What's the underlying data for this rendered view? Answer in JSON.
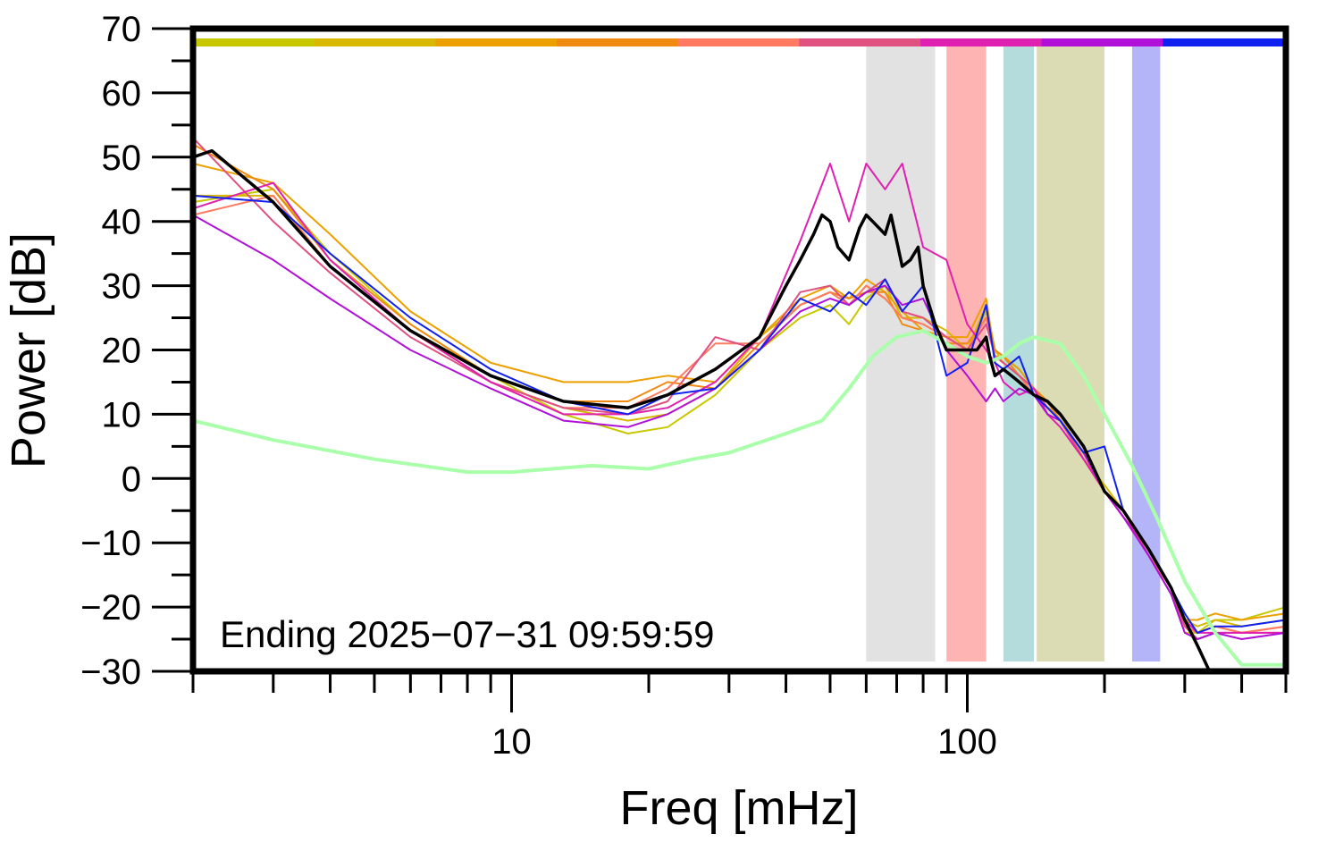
{
  "chart_data": {
    "type": "line",
    "xlabel": "Freq [mHz]",
    "ylabel": "Power [dB]",
    "xscale": "log",
    "xlim": [
      2,
      500
    ],
    "ylim": [
      -30,
      70
    ],
    "x_ticks": [
      10,
      100
    ],
    "y_ticks": [
      70,
      60,
      50,
      40,
      30,
      20,
      10,
      0,
      -10,
      -20,
      -30
    ],
    "y_tick_labels": [
      "70",
      "60",
      "50",
      "40",
      "30",
      "20",
      "10",
      "0",
      "−10",
      "−20",
      "−30"
    ],
    "annotation": "Ending 2025−07−31 09:59:59",
    "grid": false,
    "legend": "none",
    "color_bar": [
      "#c8c800",
      "#d8b800",
      "#eca000",
      "#f08a10",
      "#ff7a60",
      "#e05080",
      "#e020b0",
      "#b010d8",
      "#1020f0"
    ],
    "bands": [
      {
        "from": 60,
        "to": 85,
        "color": "#e2e2e2"
      },
      {
        "from": 90,
        "to": 110,
        "color": "#ffb4b4"
      },
      {
        "from": 120,
        "to": 140,
        "color": "#b4dcdc"
      },
      {
        "from": 142,
        "to": 200,
        "color": "#dcdcb4"
      },
      {
        "from": 230,
        "to": 265,
        "color": "#b4b4f8"
      }
    ],
    "series": [
      {
        "color": "#c8c800",
        "width": 2,
        "x": [
          2,
          3,
          4,
          6,
          9,
          13,
          18,
          22,
          28,
          35,
          43,
          50,
          55,
          60,
          66,
          72,
          80,
          90,
          100,
          110,
          115,
          120,
          130,
          140,
          150,
          160,
          180,
          200,
          220,
          250,
          280,
          300,
          320,
          350,
          400,
          500
        ],
        "y": [
          43,
          45,
          35,
          24,
          16,
          10,
          7,
          8,
          13,
          20,
          25,
          27,
          24,
          28,
          30,
          25,
          24,
          22,
          20,
          26,
          20,
          19,
          17,
          14,
          12,
          9,
          4,
          -2,
          -6,
          -12,
          -18,
          -24,
          -24,
          -22,
          -22,
          -20
        ]
      },
      {
        "color": "#d8b800",
        "width": 2,
        "x": [
          2,
          3,
          4,
          6,
          9,
          13,
          18,
          22,
          28,
          35,
          43,
          50,
          55,
          60,
          66,
          72,
          80,
          90,
          100,
          110,
          115,
          120,
          130,
          140,
          150,
          160,
          180,
          200,
          220,
          250,
          280,
          300,
          320,
          350,
          400,
          500
        ],
        "y": [
          44,
          44,
          33,
          23,
          15,
          11,
          9,
          10,
          14,
          22,
          27,
          29,
          27,
          30,
          28,
          25,
          25,
          23,
          20,
          27,
          20,
          18,
          16,
          13,
          11,
          10,
          3,
          -1,
          -5,
          -11,
          -17,
          -22,
          -23,
          -22,
          -23,
          -22
        ]
      },
      {
        "color": "#eca000",
        "width": 2,
        "x": [
          2,
          3,
          4,
          6,
          9,
          13,
          18,
          22,
          28,
          35,
          43,
          50,
          55,
          60,
          66,
          72,
          80,
          90,
          100,
          110,
          115,
          120,
          130,
          140,
          150,
          160,
          180,
          200,
          220,
          250,
          280,
          300,
          320,
          350,
          400,
          500
        ],
        "y": [
          49,
          46,
          38,
          26,
          18,
          15,
          15,
          16,
          15,
          22,
          28,
          30,
          28,
          31,
          29,
          26,
          23,
          22,
          22,
          28,
          19,
          19,
          17,
          14,
          11,
          9,
          4,
          -2,
          -6,
          -11,
          -17,
          -22,
          -22,
          -21,
          -22,
          -21
        ]
      },
      {
        "color": "#f08a10",
        "width": 2,
        "x": [
          2,
          3,
          4,
          6,
          9,
          13,
          18,
          22,
          28,
          35,
          43,
          50,
          55,
          60,
          66,
          72,
          80,
          90,
          100,
          110,
          115,
          120,
          130,
          140,
          150,
          160,
          180,
          200,
          220,
          250,
          280,
          300,
          320,
          350,
          400,
          500
        ],
        "y": [
          52,
          45,
          34,
          24,
          16,
          12,
          12,
          15,
          14,
          21,
          27,
          29,
          28,
          29,
          29,
          24,
          23,
          21,
          21,
          25,
          20,
          19,
          16,
          14,
          12,
          9,
          3,
          -2,
          -5,
          -12,
          -17,
          -23,
          -24,
          -23,
          -24,
          -23
        ]
      },
      {
        "color": "#ff7a60",
        "width": 2,
        "x": [
          2,
          3,
          4,
          6,
          9,
          13,
          18,
          22,
          28,
          35,
          43,
          50,
          55,
          60,
          66,
          72,
          80,
          90,
          100,
          110,
          115,
          120,
          130,
          140,
          150,
          160,
          180,
          200,
          220,
          250,
          280,
          300,
          320,
          350,
          400,
          500
        ],
        "y": [
          41,
          44,
          33,
          23,
          15,
          11,
          11,
          14,
          21,
          21,
          27,
          29,
          27,
          30,
          28,
          25,
          24,
          22,
          20,
          25,
          19,
          18,
          16,
          13,
          11,
          9,
          4,
          -2,
          -6,
          -12,
          -17,
          -23,
          -24,
          -23,
          -24,
          -23
        ]
      },
      {
        "color": "#e05080",
        "width": 2,
        "x": [
          2,
          3,
          4,
          6,
          9,
          13,
          18,
          22,
          28,
          35,
          43,
          50,
          55,
          60,
          66,
          72,
          80,
          90,
          100,
          110,
          115,
          120,
          130,
          140,
          150,
          160,
          180,
          200,
          220,
          250,
          280,
          300,
          320,
          350,
          400,
          500
        ],
        "y": [
          53,
          40,
          32,
          22,
          15,
          11,
          10,
          12,
          22,
          20,
          29,
          30,
          27,
          29,
          31,
          26,
          25,
          22,
          20,
          24,
          19,
          18,
          16,
          14,
          11,
          9,
          3,
          -2,
          -5,
          -12,
          -18,
          -23,
          -25,
          -24,
          -24,
          -24
        ]
      },
      {
        "color": "#e020b0",
        "width": 2,
        "x": [
          2,
          3,
          4,
          6,
          9,
          13,
          18,
          22,
          28,
          35,
          43,
          50,
          55,
          60,
          66,
          72,
          80,
          90,
          100,
          110,
          115,
          120,
          130,
          140,
          150,
          160,
          180,
          200,
          220,
          250,
          280,
          300,
          320,
          350,
          400,
          500
        ],
        "y": [
          42,
          46,
          34,
          23,
          15,
          10,
          10,
          11,
          15,
          22,
          37,
          49,
          40,
          49,
          45,
          49,
          36,
          34,
          24,
          20,
          18,
          15,
          13,
          14,
          10,
          8,
          3,
          -2,
          -6,
          -11,
          -17,
          -22,
          -24,
          -24,
          -24,
          -24
        ]
      },
      {
        "color": "#b010d8",
        "width": 2,
        "x": [
          2,
          3,
          4,
          6,
          9,
          13,
          18,
          22,
          28,
          35,
          43,
          50,
          55,
          60,
          66,
          72,
          80,
          90,
          100,
          110,
          115,
          120,
          130,
          140,
          150,
          160,
          180,
          200,
          220,
          250,
          280,
          300,
          320,
          350,
          400,
          500
        ],
        "y": [
          41,
          34,
          28,
          20,
          14,
          9,
          8,
          10,
          14,
          20,
          26,
          28,
          27,
          29,
          30,
          27,
          28,
          20,
          16,
          12,
          14,
          12,
          14,
          13,
          10,
          9,
          4,
          -2,
          -6,
          -12,
          -18,
          -24,
          -25,
          -24,
          -25,
          -24
        ]
      },
      {
        "color": "#1020f0",
        "width": 2,
        "x": [
          2,
          3,
          4,
          6,
          9,
          13,
          18,
          22,
          28,
          35,
          43,
          50,
          55,
          60,
          66,
          72,
          80,
          90,
          100,
          110,
          115,
          120,
          130,
          140,
          150,
          160,
          180,
          200,
          220,
          250,
          280,
          300,
          320,
          350,
          400,
          500
        ],
        "y": [
          44,
          43,
          35,
          25,
          17,
          12,
          10,
          13,
          14,
          20,
          28,
          26,
          29,
          27,
          31,
          26,
          30,
          16,
          18,
          27,
          18,
          17,
          19,
          13,
          11,
          9,
          4,
          5,
          -5,
          -11,
          -17,
          -21,
          -24,
          -23,
          -23,
          -22
        ]
      },
      {
        "color": "#aaffaa",
        "width": 4,
        "x": [
          2,
          3,
          5,
          8,
          10,
          15,
          20,
          25,
          30,
          40,
          48,
          55,
          62,
          70,
          80,
          90,
          100,
          110,
          120,
          130,
          140,
          160,
          180,
          200,
          230,
          260,
          300,
          350,
          400,
          500
        ],
        "y": [
          9,
          6,
          3,
          1,
          1,
          2,
          1.5,
          3,
          4,
          7,
          9,
          14,
          19,
          22,
          23,
          21,
          19,
          18,
          19,
          21,
          22,
          21,
          16,
          10,
          2,
          -6,
          -16,
          -24,
          -29,
          -29
        ]
      },
      {
        "color": "#000000",
        "width": 3.5,
        "x": [
          2,
          2.2,
          3,
          4,
          6,
          9,
          13,
          18,
          22,
          28,
          35,
          40,
          43,
          46,
          48,
          50,
          52,
          55,
          58,
          60,
          62,
          66,
          68,
          72,
          75,
          78,
          80,
          85,
          90,
          100,
          105,
          110,
          112,
          115,
          120,
          125,
          130,
          140,
          150,
          160,
          180,
          200,
          220,
          250,
          280,
          300,
          320,
          340,
          350
        ],
        "y": [
          50,
          51,
          43,
          33,
          23,
          16,
          12,
          11,
          13,
          17,
          22,
          30,
          34,
          38,
          41,
          40,
          36,
          34,
          39,
          41,
          40,
          38,
          41,
          33,
          34,
          36,
          30,
          24,
          20,
          20,
          20,
          22,
          19,
          16,
          17,
          16,
          15,
          13,
          12,
          10,
          5,
          -2,
          -5,
          -11,
          -17,
          -22,
          -26,
          -30,
          -30
        ]
      }
    ]
  }
}
